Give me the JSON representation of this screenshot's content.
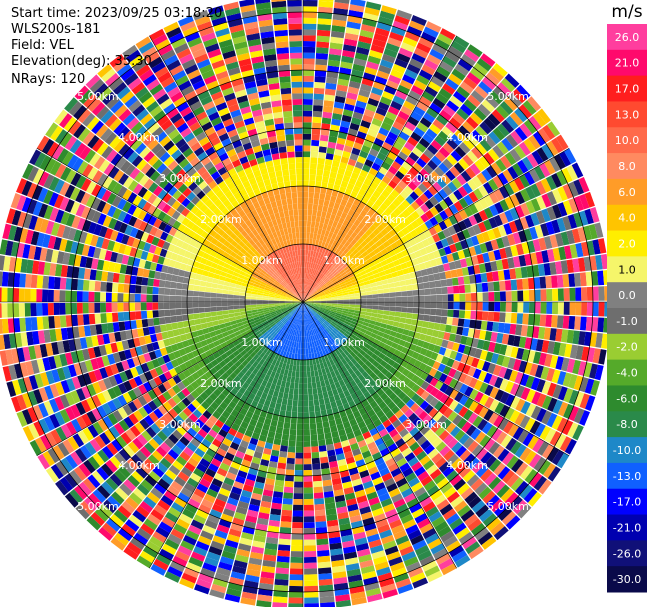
{
  "info": {
    "start_time": "Start time: 2023/09/25 03:18:20",
    "device": "WLS200s-181",
    "field": "Field: VEL",
    "elevation": "Elevation(deg): 35.30",
    "nrays": "NRays: 120"
  },
  "colorbar": {
    "unit": "m/s",
    "ticks": [
      "26.0",
      "21.0",
      "17.0",
      "13.0",
      "10.0",
      "8.0",
      "6.0",
      "4.0",
      "2.0",
      "1.0",
      "0.0",
      "-1.0",
      "-2.0",
      "-4.0",
      "-6.0",
      "-8.0",
      "-10.0",
      "-13.0",
      "-17.0",
      "-21.0",
      "-26.0",
      "-30.0"
    ],
    "colors": [
      "#ff3e9e",
      "#ff0a6c",
      "#ff1e1e",
      "#ff4a30",
      "#ff6a4a",
      "#ff8a60",
      "#ff9c28",
      "#ffc400",
      "#ffee00",
      "#f5f56a",
      "#808080",
      "#6e6e6e",
      "#9acd32",
      "#55aa2a",
      "#2e8b2e",
      "#2a8a4a",
      "#1e88c8",
      "#1060ff",
      "#0000ff",
      "#0000b0",
      "#101078",
      "#0a0a4a"
    ]
  },
  "chart_data": {
    "type": "heatmap",
    "subtype": "polar PPI",
    "field": "VEL",
    "units": "m/s",
    "nrays": 120,
    "range_rings_km": [
      "1.00km",
      "2.00km",
      "3.00km",
      "4.00km",
      "5.00km"
    ],
    "max_range_km": 5.3,
    "clean_data_radius_km": 2.5,
    "velocity_by_range_and_direction": [
      {
        "range_km": [
          0,
          1.0
        ],
        "north": 13.0,
        "south": -13.0,
        "east_west": 0.0
      },
      {
        "range_km": [
          1.0,
          2.0
        ],
        "north": 8.0,
        "south": -8.0,
        "east_west": 0.0
      },
      {
        "range_km": [
          2.0,
          2.5
        ],
        "north": 4.0,
        "south": -6.0,
        "east_west": 0.0
      }
    ],
    "noise_beyond_km": 2.5
  }
}
